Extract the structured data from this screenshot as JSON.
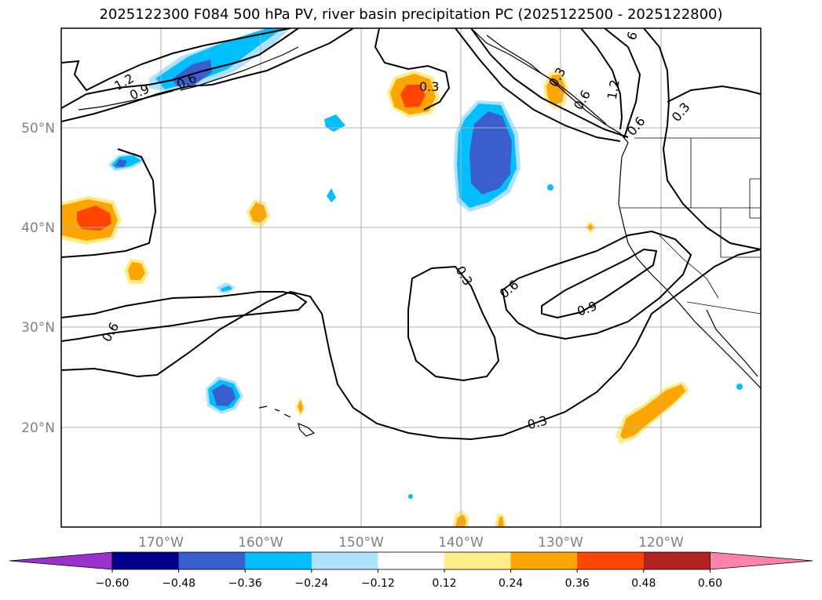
{
  "title": "2025122300 F084 500 hPa PV, river basin precipitation PC (2025122500 - 2025122800)",
  "map": {
    "lon_labels": [
      "170°W",
      "160°W",
      "150°W",
      "140°W",
      "130°W",
      "120°W"
    ],
    "lat_labels": [
      "50°N",
      "40°N",
      "30°N",
      "20°N"
    ],
    "grid": true
  },
  "contour_labels": [
    "1.2",
    "0.9",
    "0.6",
    "0.3",
    "0.3",
    "0.6",
    "0.9",
    "0.3",
    "0.6",
    "1.2",
    "0.6",
    "0.3",
    "6",
    "0.6",
    "0.3"
  ],
  "colorbar": {
    "ticks": [
      "−0.60",
      "−0.48",
      "−0.36",
      "−0.24",
      "−0.12",
      "0.12",
      "0.24",
      "0.36",
      "0.48",
      "0.60"
    ],
    "colors": [
      "#9932cc",
      "#00008b",
      "#3a5fcd",
      "#00bfff",
      "#b0e2ff",
      "#ffffff",
      "#ffec8b",
      "#ffa500",
      "#ff4500",
      "#b22222",
      "#ff82ab"
    ],
    "extend": "both"
  }
}
